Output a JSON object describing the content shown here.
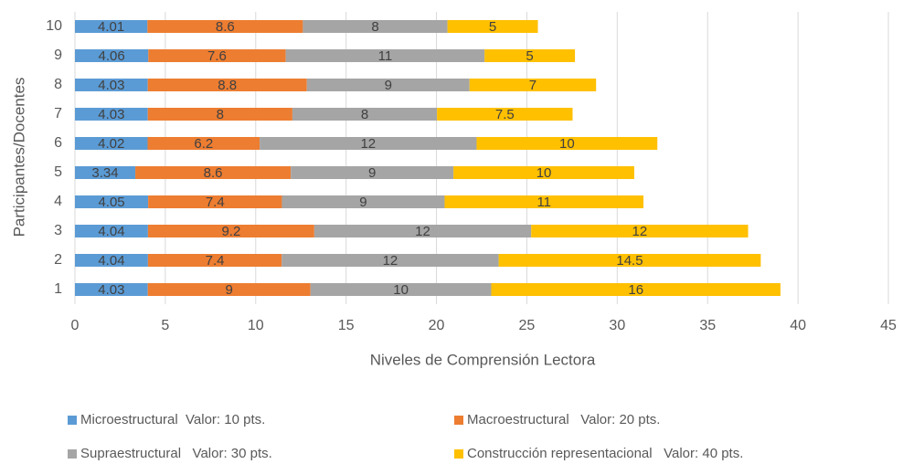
{
  "chart_data": {
    "type": "stacked_barh",
    "xlabel": "Niveles de Comprensión Lectora",
    "ylabel": "Participantes/Docentes",
    "categories": [
      "1",
      "2",
      "3",
      "4",
      "5",
      "6",
      "7",
      "8",
      "9",
      "10"
    ],
    "series": [
      {
        "name": "Microestructural  Valor: 10 pts.",
        "color": "#5b9bd5",
        "values": [
          4.03,
          4.04,
          4.04,
          4.05,
          3.34,
          4.02,
          4.03,
          4.03,
          4.06,
          4.01
        ]
      },
      {
        "name": "Macroestructural   Valor: 20 pts.",
        "color": "#ed7d31",
        "values": [
          9,
          7.4,
          9.2,
          7.4,
          8.6,
          6.2,
          8,
          8.8,
          7.6,
          8.6
        ]
      },
      {
        "name": "Supraestructural   Valor: 30 pts.",
        "color": "#a5a5a5",
        "values": [
          10,
          12,
          12,
          9,
          9,
          12,
          8,
          9,
          11,
          8
        ]
      },
      {
        "name": "Construcción representacional   Valor: 40 pts.",
        "color": "#ffc000",
        "values": [
          16,
          14.5,
          12,
          11,
          10,
          10,
          7.5,
          7,
          5,
          5
        ]
      }
    ],
    "xlim": [
      0,
      45
    ],
    "xticks": [
      0,
      5,
      10,
      15,
      20,
      25,
      30,
      35,
      40,
      45
    ],
    "grid": true,
    "legend": "bottom"
  }
}
